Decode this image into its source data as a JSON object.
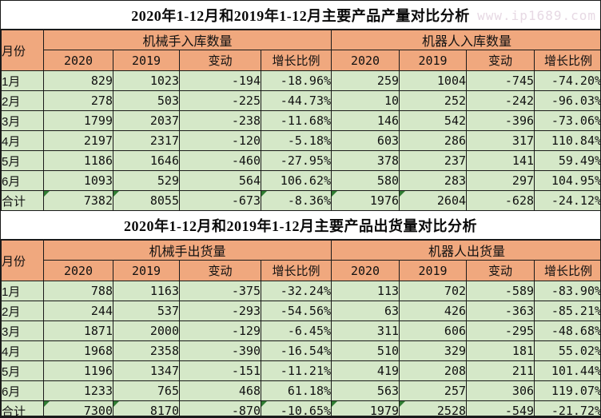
{
  "watermark": "www.ip1689.com",
  "colors": {
    "header_bg": "#F0A87E",
    "row_bg": "#D5E8C8",
    "triangle": "#2F7D32",
    "watermark": "#E7D9E4",
    "border": "#1A1A1A"
  },
  "tables": [
    {
      "title": "2020年1-12月和2019年1-12月主要产品产量对比分析",
      "month_header": "月份",
      "groups": [
        {
          "label": "机械手入库数量"
        },
        {
          "label": "机器人入库数量"
        }
      ],
      "sub_headers": [
        "2020",
        "2019",
        "变动",
        "增长比例"
      ],
      "rows": [
        {
          "month": "1月",
          "cells": [
            "829",
            "1023",
            "-194",
            "-18.96%",
            "259",
            "1004",
            "-745",
            "-74.20%"
          ]
        },
        {
          "month": "2月",
          "cells": [
            "278",
            "503",
            "-225",
            "-44.73%",
            "10",
            "252",
            "-242",
            "-96.03%"
          ]
        },
        {
          "month": "3月",
          "cells": [
            "1799",
            "2037",
            "-238",
            "-11.68%",
            "146",
            "542",
            "-396",
            "-73.06%"
          ]
        },
        {
          "month": "4月",
          "cells": [
            "2197",
            "2317",
            "-120",
            "-5.18%",
            "603",
            "286",
            "317",
            "110.84%"
          ]
        },
        {
          "month": "5月",
          "cells": [
            "1186",
            "1646",
            "-460",
            "-27.95%",
            "378",
            "237",
            "141",
            "59.49%"
          ]
        },
        {
          "month": "6月",
          "cells": [
            "1093",
            "529",
            "564",
            "106.62%",
            "580",
            "283",
            "297",
            "104.95%"
          ]
        },
        {
          "month": "合计",
          "is_total": true,
          "triangle_cells": [
            0,
            1,
            3,
            4,
            5
          ],
          "cells": [
            "7382",
            "8055",
            "-673",
            "-8.36%",
            "1976",
            "2604",
            "-628",
            "-24.12%"
          ]
        }
      ]
    },
    {
      "title": "2020年1-12月和2019年1-12月主要产品出货量对比分析",
      "month_header": "月份",
      "groups": [
        {
          "label": "机械手出货量"
        },
        {
          "label": "机器人出货量"
        }
      ],
      "sub_headers": [
        "2020",
        "2019",
        "变动",
        "增长比例"
      ],
      "rows": [
        {
          "month": "1月",
          "cells": [
            "788",
            "1163",
            "-375",
            "-32.24%",
            "113",
            "702",
            "-589",
            "-83.90%"
          ]
        },
        {
          "month": "2月",
          "cells": [
            "244",
            "537",
            "-293",
            "-54.56%",
            "63",
            "426",
            "-363",
            "-85.21%"
          ]
        },
        {
          "month": "3月",
          "cells": [
            "1871",
            "2000",
            "-129",
            "-6.45%",
            "311",
            "606",
            "-295",
            "-48.68%"
          ]
        },
        {
          "month": "4月",
          "cells": [
            "1968",
            "2358",
            "-390",
            "-16.54%",
            "510",
            "329",
            "181",
            "55.02%"
          ]
        },
        {
          "month": "5月",
          "cells": [
            "1196",
            "1347",
            "-151",
            "-11.21%",
            "419",
            "208",
            "211",
            "101.44%"
          ]
        },
        {
          "month": "6月",
          "cells": [
            "1233",
            "765",
            "468",
            "61.18%",
            "563",
            "257",
            "306",
            "119.07%"
          ]
        },
        {
          "month": "合计",
          "is_total": true,
          "triangle_cells": [
            0,
            1,
            3,
            4,
            5
          ],
          "cells": [
            "7300",
            "8170",
            "-870",
            "-10.65%",
            "1979",
            "2528",
            "-549",
            "-21.72%"
          ]
        }
      ]
    }
  ]
}
